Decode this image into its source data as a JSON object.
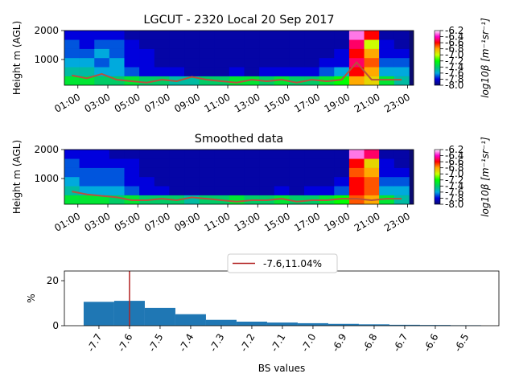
{
  "chart_data": [
    {
      "type": "heatmap",
      "title": "LGCUT - 2320 Local 20 Sep 2017",
      "y_label": "Height m (AGL)",
      "x": [
        0.6,
        1.6,
        2.6,
        3.6,
        4.6,
        5.6,
        6.6,
        7.6,
        8.6,
        9.6,
        10.6,
        11.6,
        12.6,
        13.6,
        14.6,
        15.6,
        16.6,
        17.6,
        18.6,
        19.6,
        20.6,
        21.6,
        22.6
      ],
      "y": [
        270,
        585,
        900,
        1215,
        1530,
        1845
      ],
      "z": [
        [
          -7.3,
          -7.3,
          -7.4,
          -7.4,
          -7.3,
          -7.4,
          -7.4,
          -7.5,
          -7.5,
          -7.4,
          -7.4,
          -7.3,
          -7.3,
          -7.4,
          -7.3,
          -7.4,
          -7.4,
          -7.3,
          -7.2,
          -6.8,
          -6.9,
          -7.3,
          -7.5
        ],
        [
          -7.5,
          -7.5,
          -7.6,
          -7.6,
          -7.7,
          -7.8,
          -7.8,
          -7.8,
          -7.9,
          -7.9,
          -7.9,
          -7.8,
          -7.9,
          -7.8,
          -7.8,
          -7.8,
          -7.8,
          -7.7,
          -7.6,
          -6.6,
          -6.8,
          -7.6,
          -7.6
        ],
        [
          -7.6,
          -7.6,
          -7.7,
          -7.6,
          -7.8,
          -7.8,
          -7.9,
          -7.9,
          -7.9,
          -7.9,
          -7.9,
          -7.9,
          -7.9,
          -7.9,
          -7.9,
          -7.9,
          -7.9,
          -7.8,
          -7.8,
          -6.5,
          -6.7,
          -7.7,
          -7.7
        ],
        [
          -7.7,
          -7.7,
          -7.6,
          -7.7,
          -7.8,
          -7.8,
          -7.9,
          -7.9,
          -7.9,
          -7.9,
          -7.9,
          -7.9,
          -7.9,
          -7.9,
          -7.9,
          -7.9,
          -7.9,
          -7.9,
          -7.8,
          -6.6,
          -6.8,
          -7.8,
          -7.8
        ],
        [
          -7.7,
          -7.8,
          -7.7,
          -7.7,
          -7.8,
          -7.9,
          -7.9,
          -7.9,
          -7.9,
          -7.9,
          -7.9,
          -7.9,
          -7.9,
          -7.9,
          -7.9,
          -7.9,
          -7.9,
          -7.9,
          -7.9,
          -6.5,
          -7.0,
          -7.8,
          -7.9
        ],
        [
          -7.8,
          -7.8,
          -7.8,
          -7.8,
          -7.9,
          -7.9,
          -7.9,
          -7.9,
          -7.9,
          -7.9,
          -7.9,
          -7.9,
          -7.9,
          -7.9,
          -7.9,
          -7.9,
          -7.9,
          -7.9,
          -7.9,
          -6.3,
          -6.6,
          -7.9,
          -7.9
        ]
      ],
      "line": {
        "color": "#b5533c",
        "values": [
          450,
          350,
          500,
          300,
          250,
          200,
          300,
          250,
          400,
          300,
          250,
          200,
          300,
          250,
          300,
          200,
          300,
          250,
          300,
          900,
          300,
          300,
          300
        ]
      },
      "xlim": [
        0.1,
        23.4
      ],
      "ylim": [
        110,
        2000
      ],
      "xticks": [
        {
          "value": 1,
          "label": "01:00"
        },
        {
          "value": 3,
          "label": "03:00"
        },
        {
          "value": 5,
          "label": "05:00"
        },
        {
          "value": 7,
          "label": "07:00"
        },
        {
          "value": 9,
          "label": "09:00"
        },
        {
          "value": 11,
          "label": "11:00"
        },
        {
          "value": 13,
          "label": "13:00"
        },
        {
          "value": 15,
          "label": "15:00"
        },
        {
          "value": 17,
          "label": "17:00"
        },
        {
          "value": 19,
          "label": "19:00"
        },
        {
          "value": 21,
          "label": "21:00"
        },
        {
          "value": 23,
          "label": "23:00"
        }
      ],
      "yticks": [
        1000,
        2000
      ],
      "colorbar": {
        "label": "log10β [m⁻¹sr⁻¹]",
        "clim": [
          -8,
          -6.2
        ],
        "colormap": [
          "#0a0a70",
          "#0000dd",
          "#00aadd",
          "#00cc66",
          "#00ff00",
          "#ccff00",
          "#ffaa00",
          "#ff0000",
          "#ff00cc",
          "#ffeeff"
        ],
        "ticks": [
          {
            "value": -8,
            "label": "-8.0"
          },
          -7.8,
          -7.6,
          -7.4,
          -7.2,
          {
            "value": -7,
            "label": "-7.0"
          },
          -6.8,
          -6.6,
          -6.4,
          -6.2
        ]
      }
    },
    {
      "type": "heatmap",
      "title": "Smoothed data",
      "y_label": "Height m (AGL)",
      "x": [
        0.6,
        1.6,
        2.6,
        3.6,
        4.6,
        5.6,
        6.6,
        7.6,
        8.6,
        9.6,
        10.6,
        11.6,
        12.6,
        13.6,
        14.6,
        15.6,
        16.6,
        17.6,
        18.6,
        19.6,
        20.6,
        21.6,
        22.6
      ],
      "y": [
        270,
        585,
        900,
        1215,
        1530,
        1845
      ],
      "z": [
        [
          -7.3,
          -7.3,
          -7.3,
          -7.4,
          -7.3,
          -7.4,
          -7.4,
          -7.4,
          -7.5,
          -7.4,
          -7.4,
          -7.3,
          -7.4,
          -7.4,
          -7.3,
          -7.4,
          -7.4,
          -7.3,
          -7.2,
          -6.7,
          -6.8,
          -7.3,
          -7.5
        ],
        [
          -7.5,
          -7.6,
          -7.6,
          -7.6,
          -7.7,
          -7.8,
          -7.8,
          -7.9,
          -7.9,
          -7.9,
          -7.9,
          -7.9,
          -7.9,
          -7.9,
          -7.8,
          -7.9,
          -7.8,
          -7.8,
          -7.7,
          -6.6,
          -6.7,
          -7.6,
          -7.6
        ],
        [
          -7.6,
          -7.7,
          -7.7,
          -7.7,
          -7.8,
          -7.8,
          -7.9,
          -7.9,
          -7.9,
          -7.9,
          -7.9,
          -7.9,
          -7.9,
          -7.9,
          -7.9,
          -7.9,
          -7.9,
          -7.9,
          -7.8,
          -6.6,
          -6.7,
          -7.7,
          -7.7
        ],
        [
          -7.7,
          -7.7,
          -7.7,
          -7.7,
          -7.8,
          -7.9,
          -7.9,
          -7.9,
          -7.9,
          -7.9,
          -7.9,
          -7.9,
          -7.9,
          -7.9,
          -7.9,
          -7.9,
          -7.9,
          -7.9,
          -7.9,
          -6.7,
          -6.8,
          -7.8,
          -7.8
        ],
        [
          -7.7,
          -7.8,
          -7.8,
          -7.8,
          -7.8,
          -7.9,
          -7.9,
          -7.9,
          -7.9,
          -7.9,
          -7.9,
          -7.9,
          -7.9,
          -7.9,
          -7.9,
          -7.9,
          -7.9,
          -7.9,
          -7.9,
          -6.6,
          -6.9,
          -7.8,
          -7.9
        ],
        [
          -7.8,
          -7.8,
          -7.8,
          -7.9,
          -7.9,
          -7.9,
          -7.9,
          -7.9,
          -7.9,
          -7.9,
          -7.9,
          -7.9,
          -7.9,
          -7.9,
          -7.9,
          -7.9,
          -7.9,
          -7.9,
          -7.9,
          -6.3,
          -6.5,
          -7.9,
          -7.9
        ]
      ],
      "line": {
        "color": "#b5533c",
        "values": [
          550,
          450,
          400,
          350,
          250,
          250,
          300,
          250,
          350,
          300,
          250,
          200,
          250,
          250,
          300,
          200,
          250,
          250,
          300,
          300,
          250,
          300,
          300
        ]
      },
      "xlim": [
        0.1,
        23.4
      ],
      "ylim": [
        110,
        2000
      ],
      "xticks": [
        {
          "value": 1,
          "label": "01:00"
        },
        {
          "value": 3,
          "label": "03:00"
        },
        {
          "value": 5,
          "label": "05:00"
        },
        {
          "value": 7,
          "label": "07:00"
        },
        {
          "value": 9,
          "label": "09:00"
        },
        {
          "value": 11,
          "label": "11:00"
        },
        {
          "value": 13,
          "label": "13:00"
        },
        {
          "value": 15,
          "label": "15:00"
        },
        {
          "value": 17,
          "label": "17:00"
        },
        {
          "value": 19,
          "label": "19:00"
        },
        {
          "value": 21,
          "label": "21:00"
        },
        {
          "value": 23,
          "label": "23:00"
        }
      ],
      "yticks": [
        1000,
        2000
      ],
      "colorbar": {
        "label": "log10β [m⁻¹sr⁻¹]",
        "clim": [
          -8,
          -6.2
        ],
        "colormap": [
          "#0a0a70",
          "#0000dd",
          "#00aadd",
          "#00cc66",
          "#00ff00",
          "#ccff00",
          "#ffaa00",
          "#ff0000",
          "#ff00cc",
          "#ffeeff"
        ],
        "ticks": [
          {
            "value": -8,
            "label": "-8.0"
          },
          -7.8,
          -7.6,
          -7.4,
          -7.2,
          {
            "value": -7,
            "label": "-7.0"
          },
          -6.8,
          -6.6,
          -6.4,
          -6.2
        ]
      }
    },
    {
      "type": "histogram",
      "x_label": "BS values",
      "y_label": "%",
      "color": "#1f77b4",
      "bins": [
        -7.75,
        -7.65,
        -7.55,
        -7.45,
        -7.35,
        -7.25,
        -7.15,
        -7.05,
        -6.95,
        -6.85,
        -6.75,
        -6.65,
        -6.55,
        -6.45
      ],
      "values": [
        10.6,
        11.04,
        7.9,
        5.1,
        2.6,
        1.8,
        1.4,
        1.1,
        0.8,
        0.6,
        0.4,
        0.3,
        0.2
      ],
      "vline": {
        "value": -7.6,
        "color": "#b22222",
        "name": "-7.6,11.04%"
      },
      "xlim": [
        -7.813,
        -6.392
      ],
      "ylim": [
        0,
        24.3
      ],
      "xticks": [
        -7.7,
        -7.6,
        -7.5,
        -7.4,
        -7.3,
        -7.2,
        -7.1,
        {
          "value": -7,
          "label": "-7.0"
        },
        -6.9,
        -6.8,
        -6.7,
        -6.6,
        -6.5
      ],
      "yticks": [
        0,
        20
      ]
    }
  ]
}
